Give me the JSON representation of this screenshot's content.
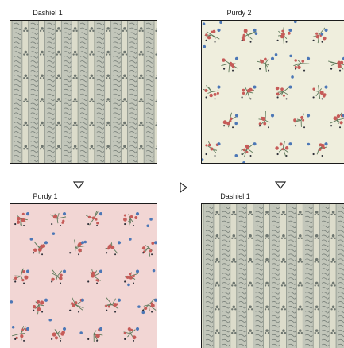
{
  "swatches": [
    {
      "label": "Dashiel 1",
      "pattern": "stripe"
    },
    {
      "label": "Purdy 2",
      "pattern": "floral-cream"
    },
    {
      "label": "Purdy 1",
      "pattern": "floral-pink"
    },
    {
      "label": "Dashiel 1",
      "pattern": "stripe"
    }
  ],
  "icons": {
    "expand_left": "chevron-down-icon",
    "next": "triangle-right-icon",
    "expand_right": "chevron-down-icon"
  },
  "colors": {
    "stripe_bg": "#dcdccb",
    "stripe_band": "#c2c6ba",
    "stripe_line": "#8f968d",
    "stripe_ink": "#6e7670",
    "cream_bg": "#efeedd",
    "pink_bg": "#f2d6d4",
    "flower_red": "#c65b58",
    "flower_blue": "#4c77b6",
    "flower_green": "#5f7a5b",
    "flower_dark": "#2b2d36",
    "border": "#1b1b1b"
  }
}
